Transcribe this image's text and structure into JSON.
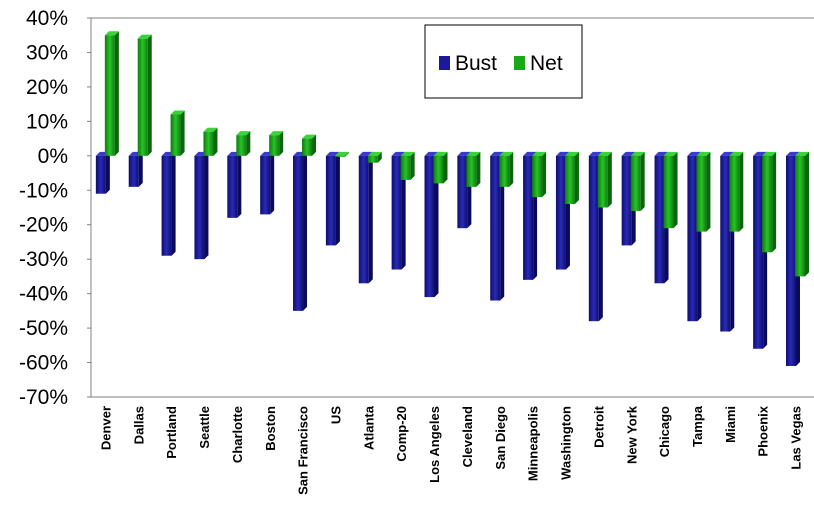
{
  "chart_data": {
    "type": "bar",
    "title": "",
    "xlabel": "",
    "ylabel": "",
    "ylim": [
      -0.7,
      0.4
    ],
    "ytick_format": "percent",
    "grid": false,
    "legend_position": "top-right",
    "categories": [
      "Denver",
      "Dallas",
      "Portland",
      "Seattle",
      "Charlotte",
      "Boston",
      "San Francisco",
      "US",
      "Atlanta",
      "Comp-20",
      "Los Angeles",
      "Cleveland",
      "San Diego",
      "Minneapolis",
      "Washington",
      "Detroit",
      "New York",
      "Chicago",
      "Tampa",
      "Miami",
      "Phoenix",
      "Las Vegas"
    ],
    "series": [
      {
        "name": "Bust",
        "color": "#1a1a99",
        "values": [
          -0.11,
          -0.09,
          -0.29,
          -0.3,
          -0.18,
          -0.17,
          -0.45,
          -0.26,
          -0.37,
          -0.33,
          -0.41,
          -0.21,
          -0.42,
          -0.36,
          -0.33,
          -0.48,
          -0.26,
          -0.37,
          -0.48,
          -0.51,
          -0.56,
          -0.61
        ]
      },
      {
        "name": "Net",
        "color": "#1aa81a",
        "values": [
          0.35,
          0.34,
          0.12,
          0.07,
          0.06,
          0.06,
          0.05,
          0.0,
          -0.02,
          -0.07,
          -0.08,
          -0.09,
          -0.09,
          -0.12,
          -0.14,
          -0.15,
          -0.16,
          -0.21,
          -0.22,
          -0.22,
          -0.28,
          -0.35
        ]
      }
    ]
  },
  "legend": {
    "bust_label": "Bust",
    "net_label": "Net"
  }
}
